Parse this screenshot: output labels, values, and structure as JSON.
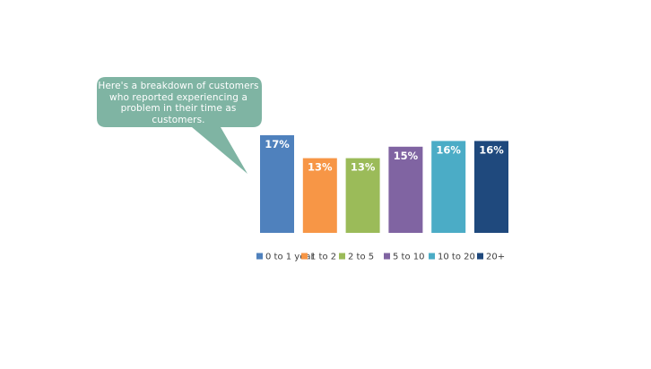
{
  "callout": {
    "line1": "Here's a breakdown of customers",
    "line2": "who reported experiencing a",
    "line3": "problem in their time as customers.",
    "color": "#7fb4a3"
  },
  "chart_data": {
    "type": "bar",
    "categories": [
      "0 to 1 year",
      "1 to 2",
      "2 to 5",
      "5 to 10",
      "10 to 20",
      "20+"
    ],
    "values": [
      17,
      13,
      13,
      15,
      16,
      16
    ],
    "data_labels": [
      "17%",
      "13%",
      "13%",
      "15%",
      "16%",
      "16%"
    ],
    "colors": [
      "#4f81bd",
      "#f79646",
      "#9bbb59",
      "#8064a2",
      "#4bacc6",
      "#1f497d"
    ],
    "ylim": [
      0,
      20
    ],
    "grid": false,
    "legend": "bottom",
    "axes_visible": false
  }
}
